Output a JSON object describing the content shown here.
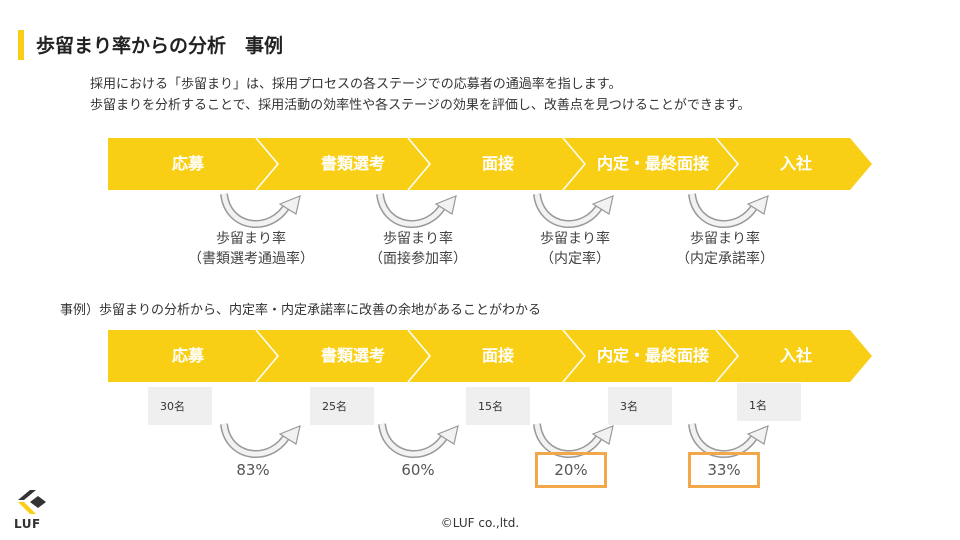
{
  "title": "歩留まり率からの分析　事例",
  "intro": {
    "line1": "採用における「歩留まり」は、採用プロセスの各ステージでの応募者の通過率を指します。",
    "line2": "歩留まりを分析することで、採用活動の効率性や各ステージの効果を評価し、改善点を見つけることができます。"
  },
  "stages": [
    "応募",
    "書類選考",
    "面接",
    "内定・最終面接",
    "入社"
  ],
  "rates": [
    {
      "line1": "歩留まり率",
      "line2": "（書類選考通過率）"
    },
    {
      "line1": "歩留まり率",
      "line2": "（面接参加率）"
    },
    {
      "line1": "歩留まり率",
      "line2": "（内定率）"
    },
    {
      "line1": "歩留まり率",
      "line2": "（内定承諾率）"
    }
  ],
  "example_text": "事例）歩留まりの分析から、内定率・内定承諾率に改善の余地があることがわかる",
  "counts": [
    "30名",
    "25名",
    "15名",
    "3名",
    "1名"
  ],
  "percentages": [
    {
      "value": "83%",
      "highlight": false
    },
    {
      "value": "60%",
      "highlight": false
    },
    {
      "value": "20%",
      "highlight": true
    },
    {
      "value": "33%",
      "highlight": true
    }
  ],
  "colors": {
    "accent": "#F9CF16",
    "highlight": "#F2A84A"
  },
  "logo_text": "LUF",
  "copyright": "©LUF co.,ltd."
}
